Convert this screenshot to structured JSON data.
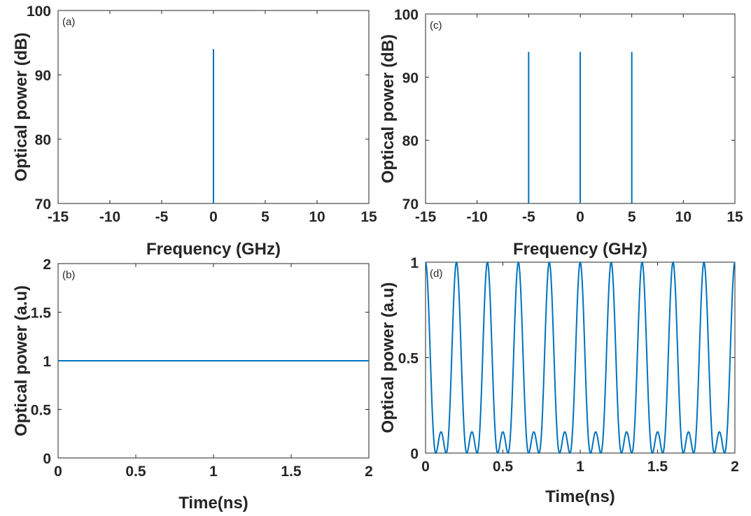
{
  "chart_data": [
    {
      "id": "a",
      "type": "line",
      "panel_label": "(a)",
      "xlabel": "Frequency (GHz)",
      "ylabel": "Optical power (dB)",
      "xlim": [
        -15,
        15
      ],
      "ylim": [
        70,
        100
      ],
      "xticks": [
        "-15",
        "-10",
        "-5",
        "0",
        "5",
        "10",
        "15"
      ],
      "yticks": [
        "70",
        "80",
        "90",
        "100"
      ],
      "spectral_lines": [
        {
          "x": 0,
          "y": 94
        }
      ],
      "color": "#0072BD",
      "grid": false
    },
    {
      "id": "b",
      "type": "line",
      "panel_label": "(b)",
      "xlabel": "Time(ns)",
      "ylabel": "Optical power (a.u)",
      "xlim": [
        0,
        2
      ],
      "ylim": [
        0,
        2
      ],
      "xticks": [
        "0",
        "0.5",
        "1",
        "1.5",
        "2"
      ],
      "yticks": [
        "0",
        "0.5",
        "1",
        "1.5",
        "2"
      ],
      "series": [
        {
          "x": [
            0,
            2
          ],
          "y": [
            1,
            1
          ]
        }
      ],
      "color": "#0072BD",
      "grid": false
    },
    {
      "id": "c",
      "type": "line",
      "panel_label": "(c)",
      "xlabel": "Frequency (GHz)",
      "ylabel": "Optical power (dB)",
      "xlim": [
        -15,
        15
      ],
      "ylim": [
        70,
        100
      ],
      "xticks": [
        "-15",
        "-10",
        "-5",
        "0",
        "5",
        "10",
        "15"
      ],
      "yticks": [
        "70",
        "80",
        "90",
        "100"
      ],
      "spectral_lines": [
        {
          "x": -5,
          "y": 94
        },
        {
          "x": 0,
          "y": 94
        },
        {
          "x": 5,
          "y": 94
        }
      ],
      "color": "#0072BD",
      "grid": false
    },
    {
      "id": "d",
      "type": "line",
      "panel_label": "(d)",
      "xlabel": "Time(ns)",
      "ylabel": "Optical power (a.u)",
      "xlim": [
        0,
        2
      ],
      "ylim": [
        0,
        1
      ],
      "xticks": [
        "0",
        "0.5",
        "1",
        "1.5",
        "2"
      ],
      "yticks": [
        "0",
        "0.5",
        "1"
      ],
      "function": "((1 + 2*cos(2*pi*5*t))/3)^2",
      "function_variable": "t",
      "color": "#0072BD",
      "grid": false
    }
  ]
}
